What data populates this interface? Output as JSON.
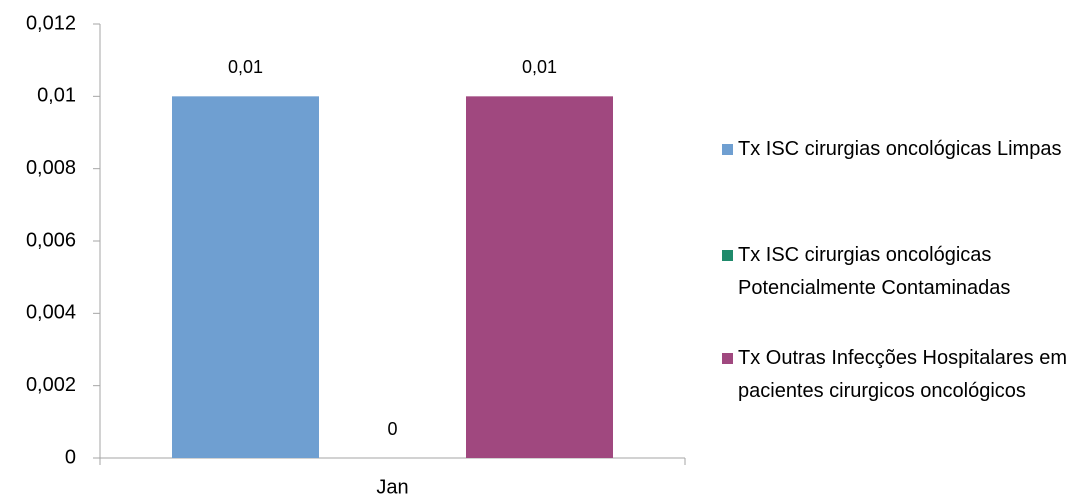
{
  "chart_data": {
    "type": "bar",
    "categories": [
      "Jan"
    ],
    "series": [
      {
        "name": "Tx ISC cirurgias oncológicas Limpas",
        "color": "#6f9fd1",
        "values": [
          0.01
        ],
        "value_labels": [
          "0,01"
        ]
      },
      {
        "name": "Tx ISC cirurgias oncológicas Potencialmente Contaminadas",
        "color": "#1f8a6b",
        "values": [
          0
        ]
      },
      {
        "name": "Tx Outras Infecções Hospitalares em pacientes cirurgicos oncológicos",
        "color": "#a0487f",
        "values": [
          0.01
        ],
        "value_labels": [
          "0,01"
        ]
      }
    ],
    "ylim": [
      0,
      0.012
    ],
    "yticks": [
      0,
      {
        "value": 0.002,
        "label": "0,002"
      },
      {
        "value": 0.004,
        "label": "0,004"
      },
      {
        "value": 0.006,
        "label": "0,006"
      },
      {
        "value": 0.008,
        "label": "0,008"
      },
      {
        "value": 0.01,
        "label": "0,01"
      },
      {
        "value": 0.012,
        "label": "0,012"
      }
    ],
    "legend": "right"
  }
}
